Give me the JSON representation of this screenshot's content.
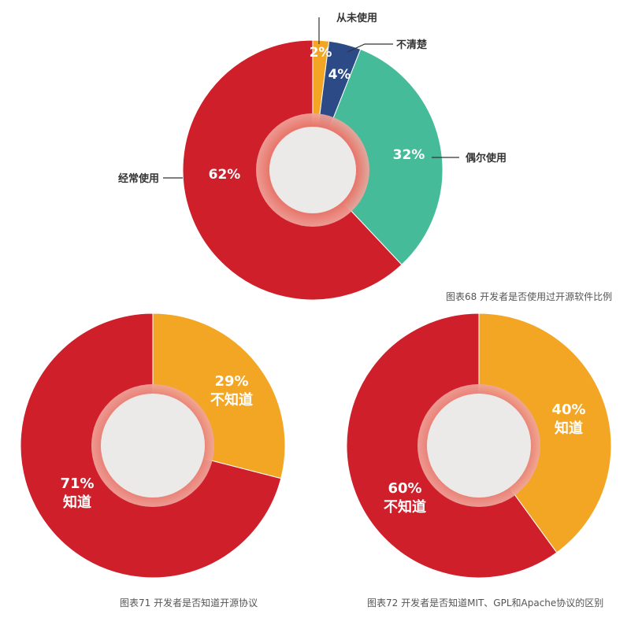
{
  "colors": {
    "red": "#CF1F2B",
    "orange": "#F2A624",
    "navy": "#2C4A86",
    "teal": "#46BB9A",
    "hole": "#ECEAE9",
    "ring": "#E3695F",
    "label_text": "#FFFFFF",
    "callout_text": "#333333",
    "caption_text": "#555555"
  },
  "chart_data": [
    {
      "type": "pie",
      "title": "图表68 开发者是否使用过开源软件比例",
      "slices": [
        {
          "label": "从未使用",
          "value": 2,
          "value_label": "2%",
          "color": "orange"
        },
        {
          "label": "不清楚",
          "value": 4,
          "value_label": "4%",
          "color": "navy"
        },
        {
          "label": "偶尔使用",
          "value": 32,
          "value_label": "32%",
          "color": "teal"
        },
        {
          "label": "经常使用",
          "value": 62,
          "value_label": "62%",
          "color": "red"
        }
      ]
    },
    {
      "type": "pie",
      "title": "图表71 开发者是否知道开源协议",
      "slices": [
        {
          "label": "不知道",
          "value": 29,
          "value_label": "29%",
          "color": "orange"
        },
        {
          "label": "知道",
          "value": 71,
          "value_label": "71%",
          "color": "red"
        }
      ]
    },
    {
      "type": "pie",
      "title": "图表72 开发者是否知道MIT、GPL和Apache协议的区别",
      "slices": [
        {
          "label": "知道",
          "value": 40,
          "value_label": "40%",
          "color": "orange"
        },
        {
          "label": "不知道",
          "value": 60,
          "value_label": "60%",
          "color": "red"
        }
      ]
    }
  ]
}
